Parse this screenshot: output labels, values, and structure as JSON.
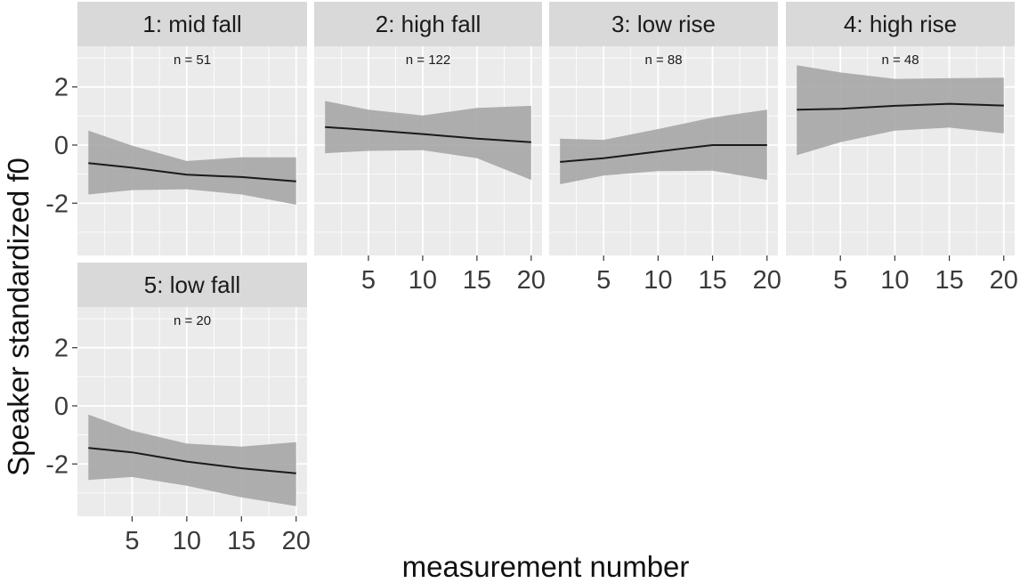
{
  "chart_data": {
    "type": "line",
    "xlabel": "measurement number",
    "ylabel": "Speaker standardized f0",
    "xlim": [
      0,
      21
    ],
    "ylim": [
      -3.8,
      3.4
    ],
    "x_ticks": [
      5,
      10,
      15,
      20
    ],
    "y_ticks": [
      -2,
      0,
      2
    ],
    "x": [
      1,
      5,
      10,
      15,
      20
    ],
    "panels": [
      {
        "label": "1: mid fall",
        "n_label": "n = 51",
        "mean": [
          -0.62,
          -0.78,
          -1.02,
          -1.1,
          -1.25
        ],
        "lower": [
          -1.7,
          -1.55,
          -1.52,
          -1.7,
          -2.05
        ],
        "upper": [
          0.5,
          -0.02,
          -0.55,
          -0.42,
          -0.42
        ]
      },
      {
        "label": "2: high fall",
        "n_label": "n = 122",
        "mean": [
          0.62,
          0.52,
          0.38,
          0.22,
          0.1
        ],
        "lower": [
          -0.28,
          -0.2,
          -0.18,
          -0.45,
          -1.2
        ],
        "upper": [
          1.52,
          1.22,
          1.02,
          1.28,
          1.35
        ]
      },
      {
        "label": "3: low rise",
        "n_label": "n = 88",
        "mean": [
          -0.58,
          -0.45,
          -0.22,
          0.0,
          0.0
        ],
        "lower": [
          -1.35,
          -1.05,
          -0.9,
          -0.88,
          -1.2
        ],
        "upper": [
          0.22,
          0.18,
          0.55,
          0.95,
          1.22
        ]
      },
      {
        "label": "4: high rise",
        "n_label": "n = 48",
        "mean": [
          1.22,
          1.25,
          1.35,
          1.42,
          1.36
        ],
        "lower": [
          -0.35,
          0.1,
          0.5,
          0.6,
          0.4
        ],
        "upper": [
          2.75,
          2.5,
          2.28,
          2.3,
          2.32
        ]
      },
      {
        "label": "5: low fall",
        "n_label": "n = 20",
        "mean": [
          -1.45,
          -1.6,
          -1.92,
          -2.15,
          -2.32
        ],
        "lower": [
          -2.55,
          -2.45,
          -2.75,
          -3.15,
          -3.45
        ],
        "upper": [
          -0.3,
          -0.85,
          -1.3,
          -1.4,
          -1.25
        ]
      }
    ],
    "colors": {
      "panel_background": "#ebebeb",
      "strip_background": "#d9d9d9",
      "grid": "#ffffff",
      "ribbon": "#a6a6a6",
      "line": "#1a1a1a"
    }
  }
}
